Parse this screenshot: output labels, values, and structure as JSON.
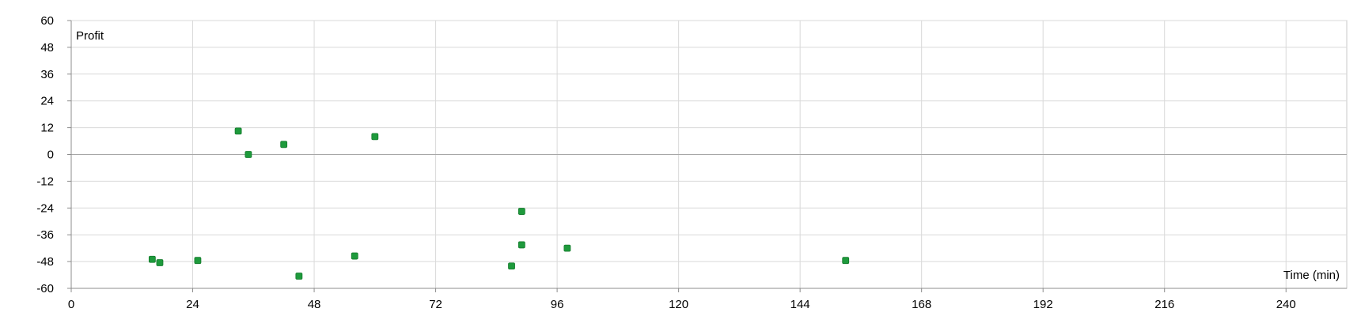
{
  "chart_data": {
    "type": "scatter",
    "title": "",
    "xlabel": "Time (min)",
    "ylabel": "Profit",
    "xlim": [
      0,
      252
    ],
    "ylim": [
      -60,
      60
    ],
    "x_ticks": [
      0,
      24,
      48,
      72,
      96,
      120,
      144,
      168,
      192,
      216,
      240
    ],
    "y_ticks": [
      60,
      48,
      36,
      24,
      12,
      0,
      -12,
      -24,
      -36,
      -48,
      -60
    ],
    "grid": true,
    "legend": "none",
    "marker_color": "#1e9a3c",
    "series": [
      {
        "points": [
          {
            "x": 16,
            "y": -47
          },
          {
            "x": 17.5,
            "y": -48.5
          },
          {
            "x": 25,
            "y": -47.5
          },
          {
            "x": 33,
            "y": 10.5
          },
          {
            "x": 35,
            "y": 0
          },
          {
            "x": 42,
            "y": 4.5
          },
          {
            "x": 45,
            "y": -54.5
          },
          {
            "x": 56,
            "y": -45.5
          },
          {
            "x": 60,
            "y": 8
          },
          {
            "x": 87,
            "y": -50
          },
          {
            "x": 89,
            "y": -25.5
          },
          {
            "x": 89,
            "y": -40.5
          },
          {
            "x": 98,
            "y": -42
          },
          {
            "x": 153,
            "y": -47.5
          }
        ]
      }
    ]
  }
}
